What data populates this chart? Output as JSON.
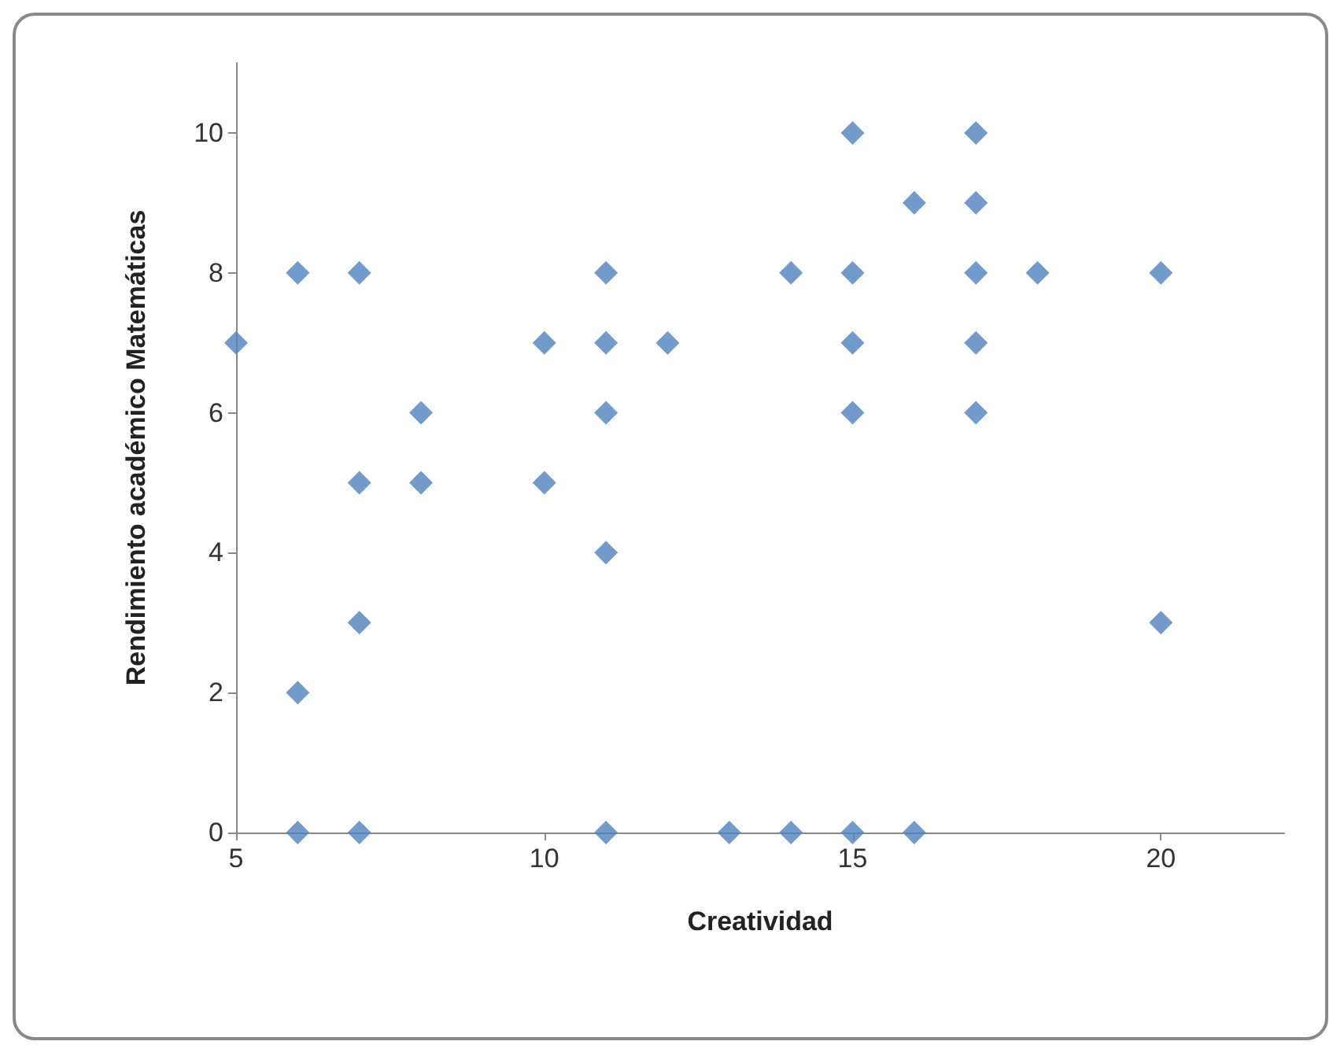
{
  "chart_data": {
    "type": "scatter",
    "xlabel": "Creatividad",
    "ylabel": "Rendimiento académico Matemáticas",
    "x": [
      5,
      6,
      6,
      6,
      7,
      7,
      7,
      7,
      8,
      8,
      10,
      10,
      11,
      11,
      11,
      11,
      11,
      12,
      13,
      14,
      14,
      15,
      15,
      15,
      15,
      15,
      16,
      16,
      17,
      17,
      17,
      17,
      17,
      18,
      20,
      20
    ],
    "values": [
      7,
      8,
      2,
      0,
      8,
      5,
      3,
      0,
      6,
      5,
      7,
      5,
      8,
      7,
      6,
      4,
      0,
      7,
      0,
      8,
      0,
      10,
      8,
      7,
      6,
      0,
      9,
      0,
      10,
      9,
      8,
      7,
      6,
      8,
      8,
      3
    ],
    "color": "#4f81bd",
    "marker": "diamond",
    "xlim": [
      5,
      22
    ],
    "xticks": [
      5,
      10,
      15,
      20
    ],
    "ylim": [
      0,
      11
    ],
    "yticks": [
      0,
      2,
      4,
      6,
      8,
      10
    ]
  }
}
